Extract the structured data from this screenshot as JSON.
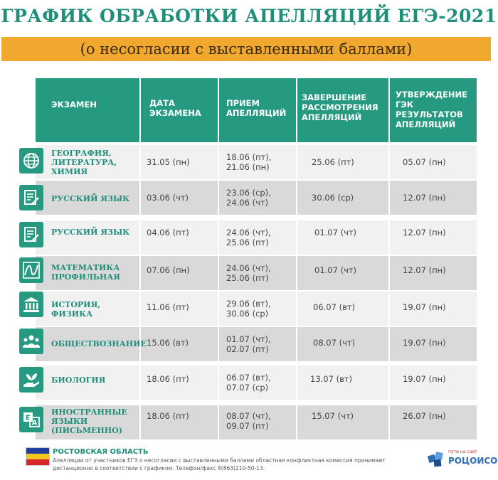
{
  "title": "ГРАФИК ОБРАБОТКИ АПЕЛЛЯЦИЙ ЕГЭ-2021",
  "subtitle": "(о несогласии с выставленными баллами)",
  "colors": {
    "accent": "#259a80",
    "banner": "#f0a92e",
    "row_light": "#f1f1f1",
    "row_dark": "#d9d9d9"
  },
  "headers": {
    "exam": "ЭКЗАМЕН",
    "date": "ДАТА ЭКЗАМЕНА",
    "accept": "ПРИЕМ АПЕЛЛЯЦИЙ",
    "complete": "ЗАВЕРШЕНИЕ РАССМОТРЕНИЯ АПЕЛЛЯЦИЙ",
    "approve": "УТВЕРЖДЕНИЕ ГЭК РЕЗУЛЬТАТОВ АПЕЛЛЯЦИЙ"
  },
  "rows": [
    {
      "icon": "globe-icon",
      "exam": "ГЕОГРАФИЯ, ЛИТЕРАТУРА, ХИМИЯ",
      "date": "31.05 (пн)",
      "accept": "18.06 (пт), 21.06 (пн)",
      "complete": "25.06 (пт)",
      "approve": "05.07 (пн)"
    },
    {
      "icon": "document-pen-icon",
      "exam": "РУССКИЙ ЯЗЫК",
      "date": "03.06 (чт)",
      "accept": "23.06 (ср), 24.06 (чт)",
      "complete": "30.06 (ср)",
      "approve": "12.07 (пн)"
    },
    {
      "icon": "document-pen-icon",
      "exam": "РУССКИЙ ЯЗЫК",
      "date": "04.06 (пт)",
      "accept": "24.06 (чт), 25.06 (пт)",
      "complete": "01.07 (чт)",
      "approve": "12.07 (пн)"
    },
    {
      "icon": "graph-icon",
      "exam": "МАТЕМАТИКА ПРОФИЛЬНАЯ",
      "date": "07.06 (пн)",
      "accept": "24.06 (чт), 25.06 (пт)",
      "complete": "01.07 (чт)",
      "approve": "12.07 (пн)"
    },
    {
      "icon": "museum-icon",
      "exam": "ИСТОРИЯ, ФИЗИКА",
      "date": "11.06 (пт)",
      "accept": "29.06 (вт), 30.06 (ср)",
      "complete": "06.07 (вт)",
      "approve": "19.07 (пн)"
    },
    {
      "icon": "people-icon",
      "exam": "ОБЩЕСТВОЗНАНИЕ",
      "date": "15.06 (вт)",
      "accept": "01.07 (чт), 02.07 (пт)",
      "complete": "08.07 (чт)",
      "approve": "19.07 (пн)"
    },
    {
      "icon": "hand-plant-icon",
      "exam": "БИОЛОГИЯ",
      "date": "18.06 (пт)",
      "accept": "06.07 (вт), 07.07 (ср)",
      "complete": "13.07 (вт)",
      "approve": "19.07 (пн)"
    },
    {
      "icon": "translate-icon",
      "exam": "ИНОСТРАННЫЕ ЯЗЫКИ (ПИСЬМЕННО)",
      "date": "18.06 (пт)",
      "accept": "08.07 (чт), 09.07 (пт)",
      "complete": "15.07 (чт)",
      "approve": "26.07 (пн)"
    }
  ],
  "footer": {
    "region": "РОСТОВСКАЯ ОБЛАСТЬ",
    "note": "Апелляции от участников ЕГЭ о несогласии с выставленными баллами областная конфликтная комиссия принимает дистанционно в соответствии с графиком. Телефон/факс 8(863)210-50-13.",
    "logo": "РОЦОИСО",
    "logo_tag": "пути на сайт"
  }
}
